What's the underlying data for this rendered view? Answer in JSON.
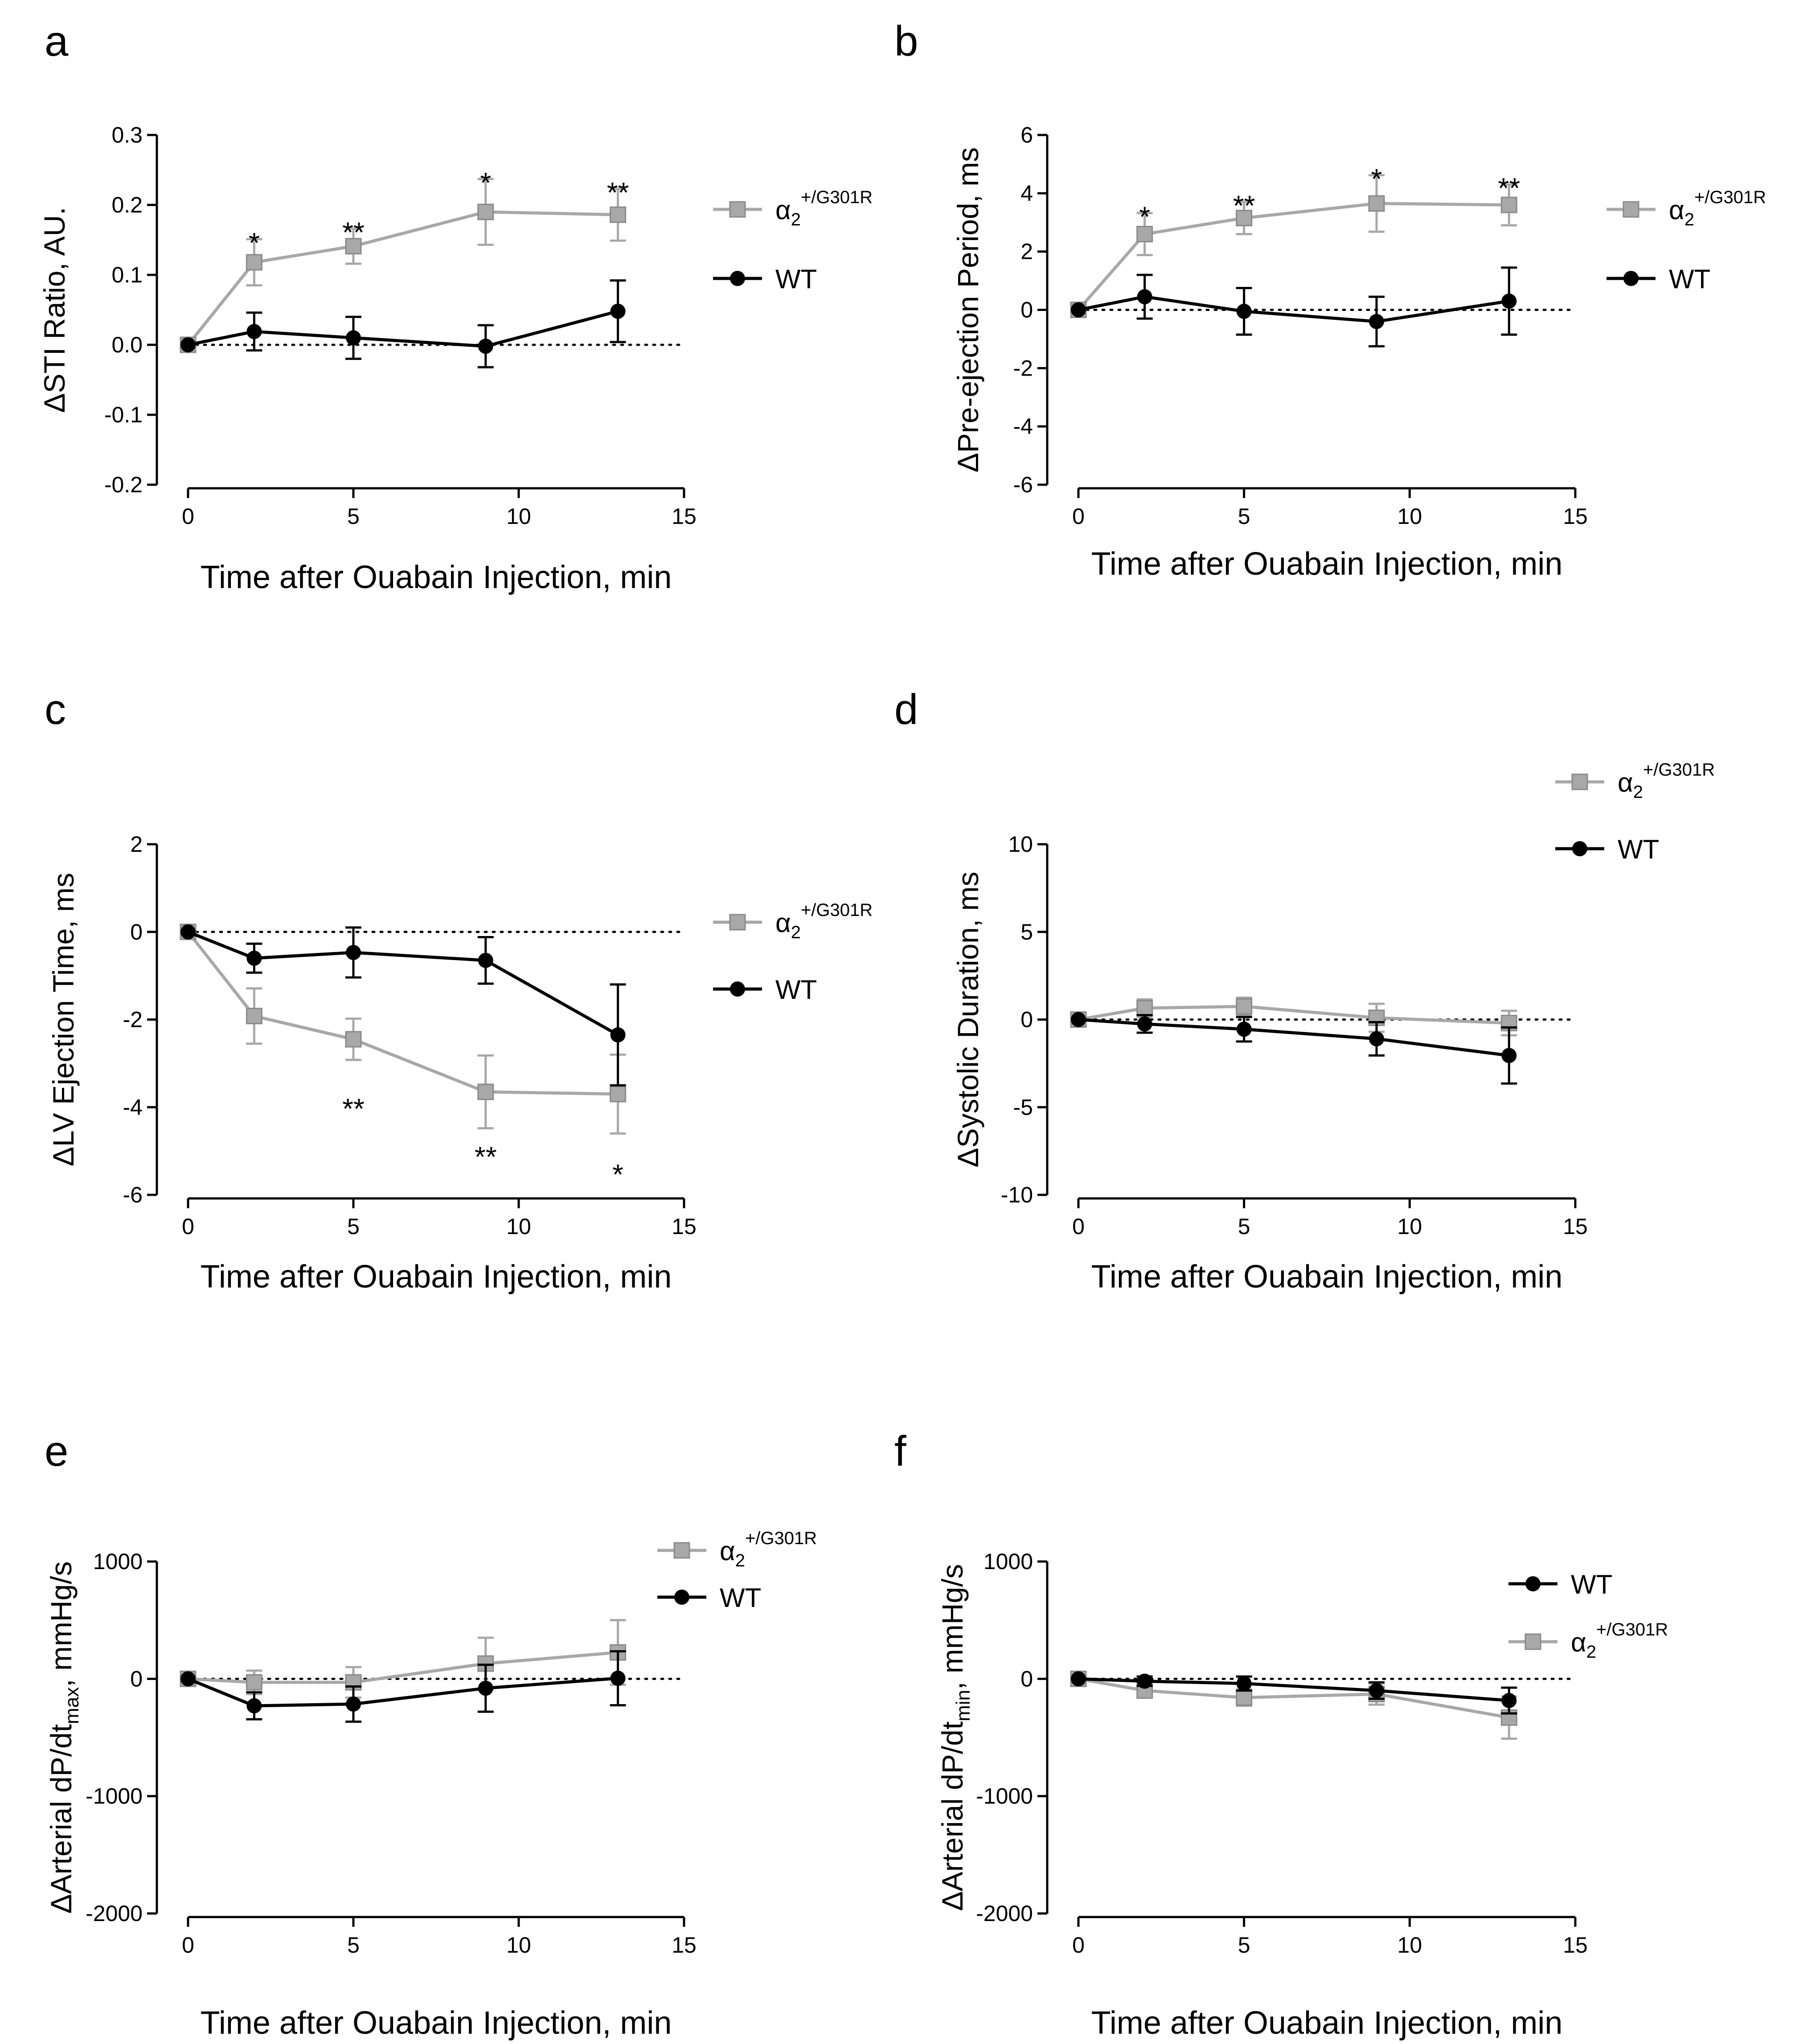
{
  "chart_data": [
    {
      "type": "line",
      "panel_letter": "a",
      "xlabel": "Time after Ouabain Injection, min",
      "ylabel": "ΔSTI Ratio, AU.",
      "ylim": [
        -0.2,
        0.3
      ],
      "yticks": [
        -0.2,
        -0.1,
        0.0,
        0.1,
        0.2,
        0.3
      ],
      "ytick_labels": [
        "-0.2",
        "-0.1",
        "0.0",
        "0.1",
        "0.2",
        "0.3"
      ],
      "xlim": [
        0,
        15
      ],
      "xticks": [
        0,
        5,
        10,
        15
      ],
      "xtick_labels": [
        "0",
        "5",
        "10",
        "15"
      ],
      "ref_line": 0,
      "legend_position": "right",
      "x": [
        0,
        2,
        5,
        9,
        13
      ],
      "series": [
        {
          "name": "α2",
          "name_sup": "+/G301R",
          "color": "#a8a8a8",
          "marker": "square",
          "values": [
            0.0,
            0.118,
            0.141,
            0.19,
            0.186
          ],
          "errors": [
            0.0,
            0.033,
            0.025,
            0.047,
            0.037
          ]
        },
        {
          "name": "WT",
          "name_sup": "",
          "color": "#000000",
          "marker": "circle",
          "values": [
            0.0,
            0.019,
            0.01,
            -0.002,
            0.048
          ],
          "errors": [
            0.0,
            0.027,
            0.03,
            0.03,
            0.044
          ]
        }
      ],
      "annotations": [
        {
          "x": 2,
          "y": 0.151,
          "text": "*"
        },
        {
          "x": 5,
          "y": 0.166,
          "text": "**"
        },
        {
          "x": 9,
          "y": 0.237,
          "text": "*"
        },
        {
          "x": 13,
          "y": 0.223,
          "text": "**"
        }
      ]
    },
    {
      "type": "line",
      "panel_letter": "b",
      "xlabel": "Time after Ouabain Injection, min",
      "ylabel": "ΔPre-ejection Period, ms",
      "ylim": [
        -6,
        6
      ],
      "yticks": [
        -6,
        -4,
        -2,
        0,
        2,
        4,
        6
      ],
      "ytick_labels": [
        "-6",
        "-4",
        "-2",
        "0",
        "2",
        "4",
        "6"
      ],
      "xlim": [
        0,
        15
      ],
      "xticks": [
        0,
        5,
        10,
        15
      ],
      "xtick_labels": [
        "0",
        "5",
        "10",
        "15"
      ],
      "ref_line": 0,
      "legend_position": "right",
      "x": [
        0,
        2,
        5,
        9,
        13
      ],
      "series": [
        {
          "name": "α2",
          "name_sup": "+/G301R",
          "color": "#a8a8a8",
          "marker": "square",
          "values": [
            0.0,
            2.6,
            3.15,
            3.65,
            3.6
          ],
          "errors": [
            0.0,
            0.72,
            0.55,
            0.97,
            0.7
          ]
        },
        {
          "name": "WT",
          "name_sup": "",
          "color": "#000000",
          "marker": "circle",
          "values": [
            0.0,
            0.45,
            -0.05,
            -0.4,
            0.3
          ],
          "errors": [
            0.0,
            0.75,
            0.8,
            0.85,
            1.15
          ]
        }
      ],
      "annotations": [
        {
          "x": 2,
          "y": 3.32,
          "text": "*"
        },
        {
          "x": 5,
          "y": 3.7,
          "text": "**"
        },
        {
          "x": 9,
          "y": 4.62,
          "text": "*"
        },
        {
          "x": 13,
          "y": 4.3,
          "text": "**"
        }
      ]
    },
    {
      "type": "line",
      "panel_letter": "c",
      "xlabel": "Time after Ouabain Injection, min",
      "ylabel": "ΔLV Ejection Time, ms",
      "ylim": [
        -6,
        2
      ],
      "yticks": [
        -6,
        -4,
        -2,
        0,
        2
      ],
      "ytick_labels": [
        "-6",
        "-4",
        "-2",
        "0",
        "2"
      ],
      "xlim": [
        0,
        15
      ],
      "xticks": [
        0,
        5,
        10,
        15
      ],
      "xtick_labels": [
        "0",
        "5",
        "10",
        "15"
      ],
      "ref_line": 0,
      "legend_position": "right",
      "x": [
        0,
        2,
        5,
        9,
        13
      ],
      "series": [
        {
          "name": "α2",
          "name_sup": "+/G301R",
          "color": "#a8a8a8",
          "marker": "square",
          "values": [
            0.0,
            -1.92,
            -2.45,
            -3.65,
            -3.7
          ],
          "errors": [
            0.0,
            0.63,
            0.47,
            0.83,
            0.9
          ]
        },
        {
          "name": "WT",
          "name_sup": "",
          "color": "#000000",
          "marker": "circle",
          "values": [
            0.0,
            -0.6,
            -0.47,
            -0.65,
            -2.35
          ],
          "errors": [
            0.0,
            0.33,
            0.57,
            0.53,
            1.15
          ]
        }
      ],
      "annotations": [
        {
          "x": 5,
          "y": -3.95,
          "text": "**"
        },
        {
          "x": 9,
          "y": -5.05,
          "text": "**"
        },
        {
          "x": 13,
          "y": -5.45,
          "text": "*"
        }
      ]
    },
    {
      "type": "line",
      "panel_letter": "d",
      "xlabel": "Time after Ouabain Injection, min",
      "ylabel": "ΔSystolic Duration, ms",
      "ylim": [
        -10,
        10
      ],
      "yticks": [
        -10,
        -5,
        0,
        5,
        10
      ],
      "ytick_labels": [
        "-10",
        "-5",
        "0",
        "5",
        "10"
      ],
      "xlim": [
        0,
        15
      ],
      "xticks": [
        0,
        5,
        10,
        15
      ],
      "xtick_labels": [
        "0",
        "5",
        "10",
        "15"
      ],
      "ref_line": 0,
      "legend_position": "top-right",
      "x": [
        0,
        2,
        5,
        9,
        13
      ],
      "series": [
        {
          "name": "α2",
          "name_sup": "+/G301R",
          "color": "#a8a8a8",
          "marker": "square",
          "values": [
            0.0,
            0.65,
            0.75,
            0.1,
            -0.2
          ],
          "errors": [
            0.0,
            0.5,
            0.5,
            0.8,
            0.7
          ]
        },
        {
          "name": "WT",
          "name_sup": "",
          "color": "#000000",
          "marker": "circle",
          "values": [
            0.0,
            -0.25,
            -0.55,
            -1.1,
            -2.05
          ],
          "errors": [
            0.0,
            0.5,
            0.7,
            0.95,
            1.6
          ]
        }
      ],
      "annotations": []
    },
    {
      "type": "line",
      "panel_letter": "e",
      "xlabel": "Time after Ouabain Injection, min",
      "ylabel": "ΔArterial dP/dt",
      "ylabel_sub": "max",
      "ylabel_suffix": ", mmHg/s",
      "ylim": [
        -2000,
        1000
      ],
      "yticks": [
        -2000,
        -1000,
        0,
        1000
      ],
      "ytick_labels": [
        "-2000",
        "-1000",
        "0",
        "1000"
      ],
      "xlim": [
        0,
        15
      ],
      "xticks": [
        0,
        5,
        10,
        15
      ],
      "xtick_labels": [
        "0",
        "5",
        "10",
        "15"
      ],
      "ref_line": 0,
      "legend_position": "top-right",
      "x": [
        0,
        2,
        5,
        9,
        13
      ],
      "series": [
        {
          "name": "α2",
          "name_sup": "+/G301R",
          "color": "#a8a8a8",
          "marker": "square",
          "values": [
            0,
            -30,
            -30,
            130,
            225
          ],
          "errors": [
            0,
            100,
            130,
            220,
            275
          ]
        },
        {
          "name": "WT",
          "name_sup": "",
          "color": "#000000",
          "marker": "circle",
          "values": [
            0,
            -230,
            -215,
            -80,
            5
          ],
          "errors": [
            0,
            115,
            150,
            200,
            230
          ]
        }
      ],
      "annotations": []
    },
    {
      "type": "line",
      "panel_letter": "f",
      "xlabel": "Time after Ouabain Injection, min",
      "ylabel": "ΔArterial dP/dt",
      "ylabel_sub": "min",
      "ylabel_suffix": ", mmHg/s",
      "ylim": [
        -2000,
        1000
      ],
      "yticks": [
        -2000,
        -1000,
        0,
        1000
      ],
      "ytick_labels": [
        "-2000",
        "-1000",
        "0",
        "1000"
      ],
      "xlim": [
        0,
        15
      ],
      "xticks": [
        0,
        5,
        10,
        15
      ],
      "xtick_labels": [
        "0",
        "5",
        "10",
        "15"
      ],
      "ref_line": 0,
      "legend_position": "top-right",
      "x": [
        0,
        2,
        5,
        9,
        13
      ],
      "series": [
        {
          "name": "WT",
          "name_sup": "",
          "color": "#000000",
          "marker": "circle",
          "values": [
            0,
            -20,
            -40,
            -100,
            -185
          ],
          "errors": [
            0,
            40,
            60,
            70,
            110
          ]
        },
        {
          "name": "α2",
          "name_sup": "+/G301R",
          "color": "#a8a8a8",
          "marker": "square",
          "values": [
            0,
            -100,
            -160,
            -130,
            -330
          ],
          "errors": [
            0,
            50,
            70,
            90,
            180
          ]
        }
      ],
      "annotations": []
    }
  ]
}
